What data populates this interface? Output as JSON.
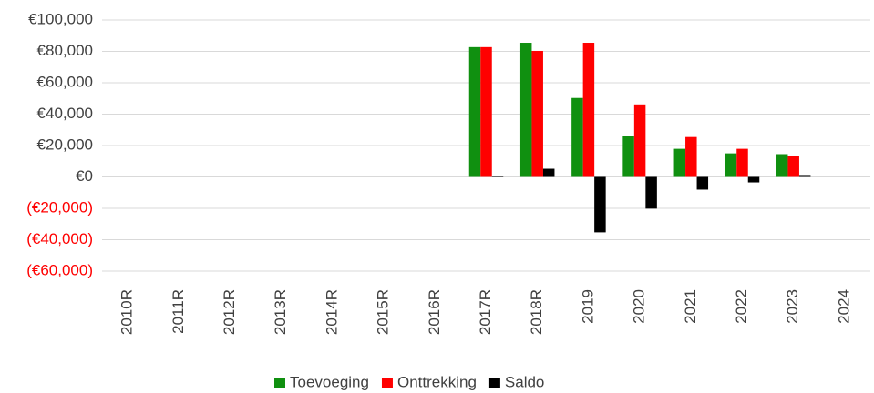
{
  "chart_data": {
    "type": "bar",
    "categories": [
      "2010R",
      "2011R",
      "2012R",
      "2013R",
      "2014R",
      "2015R",
      "2016R",
      "2017R",
      "2018R",
      "2019",
      "2020",
      "2021",
      "2022",
      "2023",
      "2024"
    ],
    "series": [
      {
        "name": "Toevoeging",
        "color": "#109010",
        "values": [
          null,
          null,
          null,
          null,
          null,
          null,
          null,
          82700,
          85500,
          50300,
          26000,
          17900,
          15000,
          14500,
          null
        ]
      },
      {
        "name": "Onttrekking",
        "color": "#ff0000",
        "values": [
          null,
          null,
          null,
          null,
          null,
          null,
          null,
          82700,
          80300,
          85500,
          46200,
          25400,
          17900,
          13300,
          null
        ]
      },
      {
        "name": "Saldo",
        "color": "#000000",
        "values": [
          null,
          null,
          null,
          null,
          null,
          null,
          null,
          500,
          5200,
          -35300,
          -20200,
          -8100,
          -3500,
          1200,
          null
        ]
      }
    ],
    "ylim": [
      -60000,
      100000
    ],
    "yticks": [
      {
        "value": -60000,
        "label": "(€60,000)"
      },
      {
        "value": -40000,
        "label": "(€40,000)"
      },
      {
        "value": -20000,
        "label": "(€20,000)"
      },
      {
        "value": 0,
        "label": "€0"
      },
      {
        "value": 20000,
        "label": "€20,000"
      },
      {
        "value": 40000,
        "label": "€40,000"
      },
      {
        "value": 60000,
        "label": "€60,000"
      },
      {
        "value": 80000,
        "label": "€80,000"
      },
      {
        "value": 100000,
        "label": "€100,000"
      }
    ],
    "negative_tick_color": "#ff0000",
    "grid": true,
    "legend": "bottom"
  }
}
